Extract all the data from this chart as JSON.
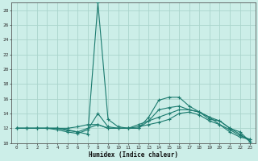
{
  "xlabel": "Humidex (Indice chaleur)",
  "background_color": "#cceee8",
  "grid_color": "#aad4cc",
  "line_color": "#1a7a6e",
  "xlim": [
    -0.5,
    23.5
  ],
  "ylim": [
    10,
    29
  ],
  "yticks": [
    10,
    12,
    14,
    16,
    18,
    20,
    22,
    24,
    26,
    28
  ],
  "xtick_vals": [
    0,
    1,
    2,
    3,
    4,
    5,
    6,
    7,
    8,
    9,
    10,
    11,
    12,
    13,
    14,
    15,
    16,
    17,
    18,
    19,
    20,
    21,
    22,
    23
  ],
  "xtick_labels": [
    "0",
    "1",
    "2",
    "3",
    "4",
    "5",
    "6",
    "7",
    "8",
    "9",
    "10",
    "11",
    "12",
    "13",
    "14",
    "15",
    "16",
    "17",
    "18",
    "19",
    "20",
    "21",
    "22",
    "23"
  ],
  "series": [
    [
      12,
      12,
      12,
      12,
      12.0,
      11.7,
      11.5,
      11.2,
      29.0,
      13.2,
      12.2,
      12.0,
      12.0,
      13.5,
      15.8,
      16.2,
      16.2,
      15.0,
      14.2,
      13.5,
      13.0,
      12.0,
      11.5,
      10.2
    ],
    [
      12,
      12,
      12,
      12,
      11.8,
      11.5,
      11.3,
      11.8,
      14.0,
      12.2,
      12.0,
      12.0,
      12.0,
      13.0,
      14.5,
      14.8,
      15.0,
      14.5,
      14.2,
      13.2,
      13.0,
      12.0,
      11.2,
      10.2
    ],
    [
      12,
      12,
      12,
      12,
      12.0,
      11.8,
      11.5,
      12.0,
      12.5,
      12.0,
      12.0,
      12.0,
      12.5,
      13.0,
      13.5,
      14.0,
      14.5,
      14.5,
      14.2,
      13.5,
      12.5,
      11.5,
      10.8,
      10.5
    ],
    [
      12,
      12,
      12,
      12,
      12.0,
      12.0,
      12.2,
      12.5,
      12.5,
      12.0,
      12.0,
      12.0,
      12.2,
      12.5,
      12.8,
      13.2,
      14.0,
      14.2,
      13.8,
      13.0,
      12.5,
      11.8,
      11.0,
      10.5
    ]
  ]
}
